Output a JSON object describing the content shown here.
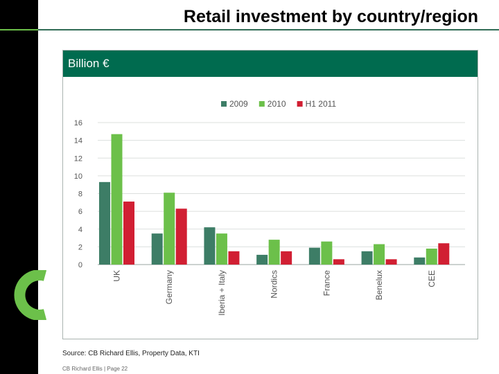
{
  "page": {
    "title": "Retail investment by country/region",
    "panel_header": "Billion €",
    "source": "Source: CB Richard Ellis, Property Data, KTI",
    "footer": "CB Richard Ellis | Page 22"
  },
  "colors": {
    "header_bg": "#006b4f",
    "series_2009": "#3d7d66",
    "series_2010": "#6cc04a",
    "series_h1_2011": "#d11f33",
    "logo": "#6cc04a"
  },
  "icons": {
    "logo": "green-ring-logo"
  },
  "chart_data": {
    "type": "bar",
    "categories": [
      "UK",
      "Germany",
      "Iberia + Italy",
      "Nordics",
      "France",
      "Benelux",
      "CEE"
    ],
    "series": [
      {
        "name": "2009",
        "values": [
          9.3,
          3.5,
          4.2,
          1.1,
          1.9,
          1.5,
          0.8
        ]
      },
      {
        "name": "2010",
        "values": [
          14.7,
          8.1,
          3.5,
          2.8,
          2.6,
          2.3,
          1.8
        ]
      },
      {
        "name": "H1 2011",
        "values": [
          7.1,
          6.3,
          1.5,
          1.5,
          0.6,
          0.6,
          2.4
        ]
      }
    ],
    "yticks": [
      0,
      2,
      4,
      6,
      8,
      10,
      12,
      14,
      16
    ],
    "ylim": [
      0,
      16
    ],
    "ylabel": "",
    "xlabel": "",
    "grid": true,
    "legend": "top-center"
  }
}
